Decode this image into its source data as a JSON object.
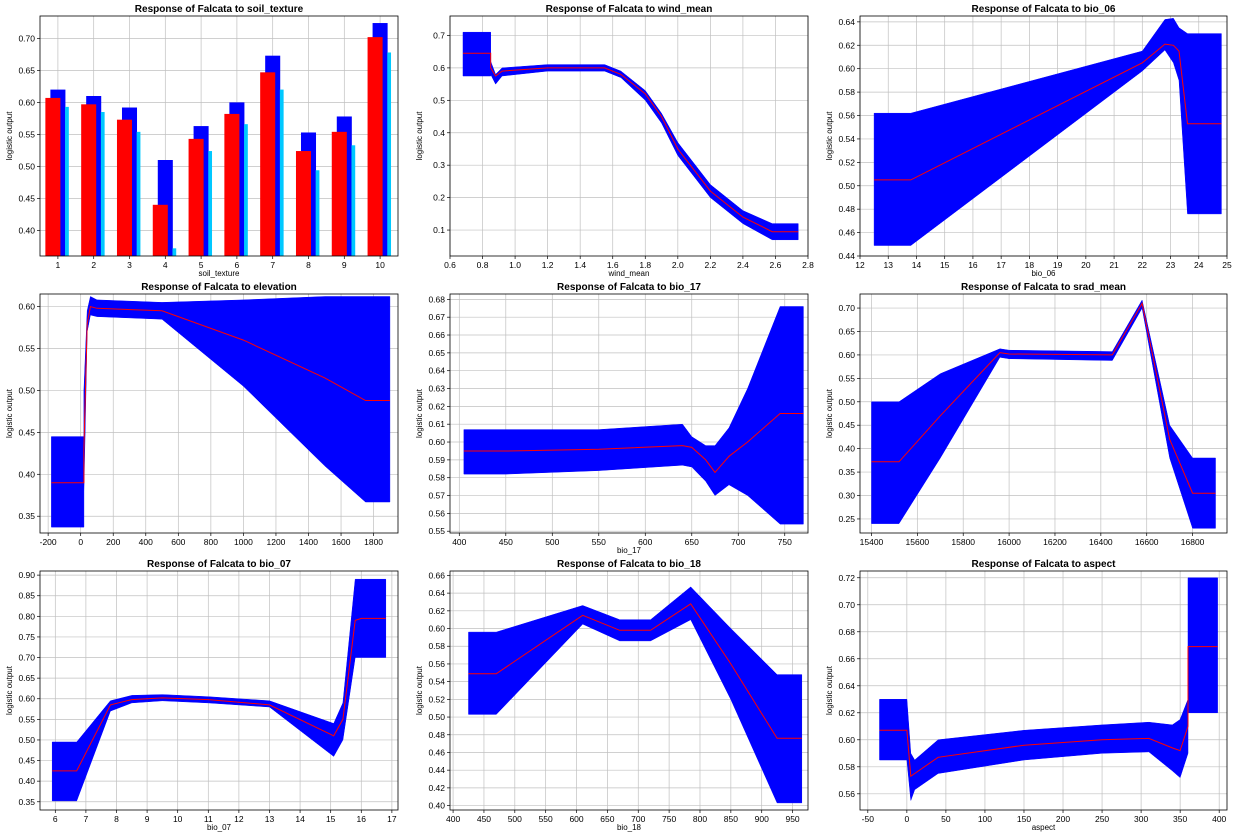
{
  "colors": {
    "band": "#0000ff",
    "mean": "#ff0000",
    "bar_upper": "#0000ff",
    "bar_mean": "#ff0000",
    "bar_lower": "#00c8ff",
    "grid": "#c0c0c0"
  },
  "chart_data": [
    {
      "type": "bar",
      "title": "Response of Falcata to soil_texture",
      "xlabel": "soil_texture",
      "ylabel": "logistic output",
      "categories": [
        "1",
        "2",
        "3",
        "4",
        "5",
        "6",
        "7",
        "8",
        "9",
        "10"
      ],
      "series": [
        {
          "values": [
            0.62,
            0.61,
            0.592,
            0.51,
            0.563,
            0.6,
            0.673,
            0.553,
            0.578,
            0.724
          ]
        },
        {
          "values": [
            0.607,
            0.597,
            0.573,
            0.44,
            0.543,
            0.582,
            0.647,
            0.524,
            0.554,
            0.702
          ]
        },
        {
          "values": [
            0.593,
            0.585,
            0.554,
            0.372,
            0.524,
            0.566,
            0.62,
            0.494,
            0.533,
            0.678
          ]
        }
      ],
      "ylim": [
        0.36,
        0.735
      ],
      "yticks": [
        0.4,
        0.45,
        0.5,
        0.55,
        0.6,
        0.65,
        0.7
      ],
      "ytick_labels": [
        "0.40",
        "0.45",
        "0.50",
        "0.55",
        "0.60",
        "0.65",
        "0.70"
      ],
      "grid": true
    },
    {
      "type": "area",
      "title": "Response of Falcata to wind_mean",
      "xlabel": "wind_mean",
      "ylabel": "logistic output",
      "xlim": [
        0.6,
        2.8
      ],
      "ylim": [
        0.02,
        0.76
      ],
      "xticks": [
        0.6,
        0.8,
        1.0,
        1.2,
        1.4,
        1.6,
        1.8,
        2.0,
        2.2,
        2.4,
        2.6,
        2.8
      ],
      "xtick_labels": [
        "0.6",
        "0.8",
        "1.0",
        "1.2",
        "1.4",
        "1.6",
        "1.8",
        "2.0",
        "2.2",
        "2.4",
        "2.6",
        "2.8"
      ],
      "yticks": [
        0.1,
        0.2,
        0.3,
        0.4,
        0.5,
        0.6,
        0.7
      ],
      "ytick_labels": [
        "0.1",
        "0.2",
        "0.3",
        "0.4",
        "0.5",
        "0.6",
        "0.7"
      ],
      "grid": true,
      "x": [
        0.68,
        0.85,
        0.85,
        0.88,
        0.92,
        1.2,
        1.55,
        1.65,
        1.8,
        1.9,
        2.0,
        2.2,
        2.4,
        2.58,
        2.58,
        2.74
      ],
      "upper": [
        0.71,
        0.71,
        0.62,
        0.58,
        0.6,
        0.61,
        0.61,
        0.59,
        0.53,
        0.46,
        0.37,
        0.24,
        0.16,
        0.12,
        0.12,
        0.12
      ],
      "mean": [
        0.645,
        0.645,
        0.6,
        0.575,
        0.59,
        0.6,
        0.6,
        0.58,
        0.52,
        0.45,
        0.35,
        0.22,
        0.14,
        0.095,
        0.095,
        0.095
      ],
      "lower": [
        0.575,
        0.575,
        0.58,
        0.55,
        0.575,
        0.59,
        0.59,
        0.57,
        0.5,
        0.43,
        0.33,
        0.2,
        0.12,
        0.07,
        0.07,
        0.07
      ]
    },
    {
      "type": "area",
      "title": "Response of Falcata to bio_06",
      "xlabel": "bio_06",
      "ylabel": "logistic output",
      "xlim": [
        12,
        25
      ],
      "ylim": [
        0.44,
        0.645
      ],
      "xticks": [
        12,
        13,
        14,
        15,
        16,
        17,
        18,
        19,
        20,
        21,
        22,
        23,
        24,
        25
      ],
      "xtick_labels": [
        "12",
        "13",
        "14",
        "15",
        "16",
        "17",
        "18",
        "19",
        "20",
        "21",
        "22",
        "23",
        "24",
        "25"
      ],
      "yticks": [
        0.44,
        0.46,
        0.48,
        0.5,
        0.52,
        0.54,
        0.56,
        0.58,
        0.6,
        0.62,
        0.64
      ],
      "ytick_labels": [
        "0.44",
        "0.46",
        "0.48",
        "0.50",
        "0.52",
        "0.54",
        "0.56",
        "0.58",
        "0.60",
        "0.62",
        "0.64"
      ],
      "grid": true,
      "x": [
        12.5,
        13.8,
        22.0,
        22.8,
        23.1,
        23.3,
        23.6,
        23.6,
        24.8
      ],
      "upper": [
        0.562,
        0.562,
        0.615,
        0.642,
        0.643,
        0.635,
        0.63,
        0.63,
        0.63
      ],
      "mean": [
        0.505,
        0.505,
        0.605,
        0.621,
        0.62,
        0.615,
        0.553,
        0.553,
        0.553
      ],
      "lower": [
        0.449,
        0.449,
        0.598,
        0.616,
        0.605,
        0.59,
        0.476,
        0.476,
        0.476
      ]
    },
    {
      "type": "area",
      "title": "Response of Falcata to elevation",
      "xlabel": "",
      "ylabel": "logistic output",
      "xlim": [
        -250,
        1950
      ],
      "ylim": [
        0.33,
        0.615
      ],
      "xticks": [
        -200,
        0,
        200,
        400,
        600,
        800,
        1000,
        1200,
        1400,
        1600,
        1800
      ],
      "xtick_labels": [
        "-200",
        "0",
        "200",
        "400",
        "600",
        "800",
        "1000",
        "1200",
        "1400",
        "1600",
        "1800"
      ],
      "yticks": [
        0.35,
        0.4,
        0.45,
        0.5,
        0.55,
        0.6
      ],
      "ytick_labels": [
        "0.35",
        "0.40",
        "0.45",
        "0.50",
        "0.55",
        "0.60"
      ],
      "grid": true,
      "x": [
        -180,
        20,
        20,
        40,
        60,
        100,
        500,
        1000,
        1500,
        1750,
        1900
      ],
      "upper": [
        0.445,
        0.445,
        0.5,
        0.595,
        0.612,
        0.608,
        0.605,
        0.608,
        0.612,
        0.612,
        0.612
      ],
      "mean": [
        0.39,
        0.39,
        0.43,
        0.58,
        0.6,
        0.598,
        0.595,
        0.56,
        0.515,
        0.488,
        0.488
      ],
      "lower": [
        0.337,
        0.337,
        0.38,
        0.57,
        0.59,
        0.588,
        0.585,
        0.505,
        0.41,
        0.367,
        0.367
      ]
    },
    {
      "type": "area",
      "title": "Response of Falcata to bio_17",
      "xlabel": "bio_17",
      "ylabel": "logistic output",
      "xlim": [
        390,
        775
      ],
      "ylim": [
        0.549,
        0.683
      ],
      "xticks": [
        400,
        450,
        500,
        550,
        600,
        650,
        700,
        750
      ],
      "xtick_labels": [
        "400",
        "450",
        "500",
        "550",
        "600",
        "650",
        "700",
        "750"
      ],
      "yticks": [
        0.55,
        0.56,
        0.57,
        0.58,
        0.59,
        0.6,
        0.61,
        0.62,
        0.63,
        0.64,
        0.65,
        0.66,
        0.67,
        0.68
      ],
      "ytick_labels": [
        "0.55",
        "0.56",
        "0.57",
        "0.58",
        "0.59",
        "0.60",
        "0.61",
        "0.62",
        "0.63",
        "0.64",
        "0.65",
        "0.66",
        "0.67",
        "0.68"
      ],
      "grid": true,
      "x": [
        405,
        450,
        550,
        640,
        650,
        665,
        675,
        690,
        710,
        745,
        770
      ],
      "upper": [
        0.607,
        0.607,
        0.607,
        0.61,
        0.603,
        0.598,
        0.598,
        0.608,
        0.63,
        0.676,
        0.676
      ],
      "mean": [
        0.595,
        0.595,
        0.596,
        0.598,
        0.597,
        0.59,
        0.583,
        0.592,
        0.6,
        0.616,
        0.616
      ],
      "lower": [
        0.582,
        0.582,
        0.584,
        0.587,
        0.586,
        0.578,
        0.57,
        0.576,
        0.57,
        0.554,
        0.554
      ]
    },
    {
      "type": "area",
      "title": "Response of Falcata to srad_mean",
      "xlabel": "",
      "ylabel": "logistic output",
      "xlim": [
        15350,
        16950
      ],
      "ylim": [
        0.22,
        0.73
      ],
      "xticks": [
        15400,
        15600,
        15800,
        16000,
        16200,
        16400,
        16600,
        16800
      ],
      "xtick_labels": [
        "15400",
        "15600",
        "15800",
        "16000",
        "16200",
        "16400",
        "16600",
        "16800"
      ],
      "yticks": [
        0.25,
        0.3,
        0.35,
        0.4,
        0.45,
        0.5,
        0.55,
        0.6,
        0.65,
        0.7
      ],
      "ytick_labels": [
        "0.25",
        "0.30",
        "0.35",
        "0.40",
        "0.45",
        "0.50",
        "0.55",
        "0.60",
        "0.65",
        "0.70"
      ],
      "grid": true,
      "x": [
        15400,
        15520,
        15700,
        15960,
        16000,
        16450,
        16580,
        16700,
        16800,
        16900
      ],
      "upper": [
        0.5,
        0.5,
        0.56,
        0.613,
        0.61,
        0.607,
        0.717,
        0.45,
        0.38,
        0.38
      ],
      "mean": [
        0.372,
        0.372,
        0.47,
        0.605,
        0.602,
        0.6,
        0.71,
        0.42,
        0.305,
        0.305
      ],
      "lower": [
        0.24,
        0.24,
        0.38,
        0.595,
        0.592,
        0.588,
        0.7,
        0.38,
        0.23,
        0.23
      ]
    },
    {
      "type": "area",
      "title": "Response of Falcata to bio_07",
      "xlabel": "bio_07",
      "ylabel": "logistic output",
      "xlim": [
        5.5,
        17.2
      ],
      "ylim": [
        0.33,
        0.91
      ],
      "xticks": [
        6,
        7,
        8,
        9,
        10,
        11,
        12,
        13,
        14,
        15,
        16,
        17
      ],
      "xtick_labels": [
        "6",
        "7",
        "8",
        "9",
        "10",
        "11",
        "12",
        "13",
        "14",
        "15",
        "16",
        "17"
      ],
      "yticks": [
        0.35,
        0.4,
        0.45,
        0.5,
        0.55,
        0.6,
        0.65,
        0.7,
        0.75,
        0.8,
        0.85,
        0.9
      ],
      "ytick_labels": [
        "0.35",
        "0.40",
        "0.45",
        "0.50",
        "0.55",
        "0.60",
        "0.65",
        "0.70",
        "0.75",
        "0.80",
        "0.85",
        "0.90"
      ],
      "grid": true,
      "x": [
        5.9,
        6.7,
        7.8,
        8.5,
        9.5,
        11,
        13,
        15.1,
        15.4,
        15.8,
        16.0,
        16.8
      ],
      "upper": [
        0.495,
        0.495,
        0.595,
        0.608,
        0.61,
        0.605,
        0.595,
        0.54,
        0.59,
        0.89,
        0.89,
        0.89
      ],
      "mean": [
        0.425,
        0.425,
        0.585,
        0.598,
        0.602,
        0.598,
        0.585,
        0.51,
        0.55,
        0.79,
        0.795,
        0.795
      ],
      "lower": [
        0.352,
        0.352,
        0.57,
        0.59,
        0.595,
        0.59,
        0.58,
        0.46,
        0.5,
        0.7,
        0.7,
        0.7
      ]
    },
    {
      "type": "area",
      "title": "Response of Falcata to bio_18",
      "xlabel": "bio_18",
      "ylabel": "logistic output",
      "xlim": [
        395,
        975
      ],
      "ylim": [
        0.395,
        0.665
      ],
      "xticks": [
        400,
        450,
        500,
        550,
        600,
        650,
        700,
        750,
        800,
        850,
        900,
        950
      ],
      "xtick_labels": [
        "400",
        "450",
        "500",
        "550",
        "600",
        "650",
        "700",
        "750",
        "800",
        "850",
        "900",
        "950"
      ],
      "yticks": [
        0.4,
        0.42,
        0.44,
        0.46,
        0.48,
        0.5,
        0.52,
        0.54,
        0.56,
        0.58,
        0.6,
        0.62,
        0.64,
        0.66
      ],
      "ytick_labels": [
        "0.40",
        "0.42",
        "0.44",
        "0.46",
        "0.48",
        "0.50",
        "0.52",
        "0.54",
        "0.56",
        "0.58",
        "0.60",
        "0.62",
        "0.64",
        "0.66"
      ],
      "grid": true,
      "x": [
        425,
        470,
        610,
        670,
        720,
        785,
        850,
        925,
        965
      ],
      "upper": [
        0.596,
        0.596,
        0.626,
        0.61,
        0.61,
        0.647,
        0.6,
        0.548,
        0.548
      ],
      "mean": [
        0.549,
        0.549,
        0.615,
        0.598,
        0.598,
        0.628,
        0.56,
        0.476,
        0.476
      ],
      "lower": [
        0.503,
        0.503,
        0.605,
        0.586,
        0.586,
        0.61,
        0.52,
        0.403,
        0.403
      ]
    },
    {
      "type": "area",
      "title": "Response of Falcata to aspect",
      "xlabel": "aspect",
      "ylabel": "logistic output",
      "xlim": [
        -60,
        410
      ],
      "ylim": [
        0.548,
        0.725
      ],
      "xticks": [
        -50,
        0,
        50,
        100,
        150,
        200,
        250,
        300,
        350,
        400
      ],
      "xtick_labels": [
        "-50",
        "0",
        "50",
        "100",
        "150",
        "200",
        "250",
        "300",
        "350",
        "400"
      ],
      "yticks": [
        0.56,
        0.58,
        0.6,
        0.62,
        0.64,
        0.66,
        0.68,
        0.7,
        0.72
      ],
      "ytick_labels": [
        "0.56",
        "0.58",
        "0.60",
        "0.62",
        "0.64",
        "0.66",
        "0.68",
        "0.70",
        "0.72"
      ],
      "grid": true,
      "x": [
        -35,
        0,
        5,
        10,
        40,
        150,
        250,
        310,
        340,
        350,
        360,
        360,
        398
      ],
      "upper": [
        0.63,
        0.63,
        0.59,
        0.585,
        0.6,
        0.607,
        0.611,
        0.613,
        0.611,
        0.615,
        0.63,
        0.72,
        0.72
      ],
      "mean": [
        0.607,
        0.607,
        0.573,
        0.575,
        0.587,
        0.596,
        0.6,
        0.601,
        0.594,
        0.592,
        0.61,
        0.669,
        0.669
      ],
      "lower": [
        0.585,
        0.585,
        0.555,
        0.563,
        0.575,
        0.585,
        0.59,
        0.591,
        0.577,
        0.572,
        0.59,
        0.62,
        0.62
      ]
    }
  ]
}
